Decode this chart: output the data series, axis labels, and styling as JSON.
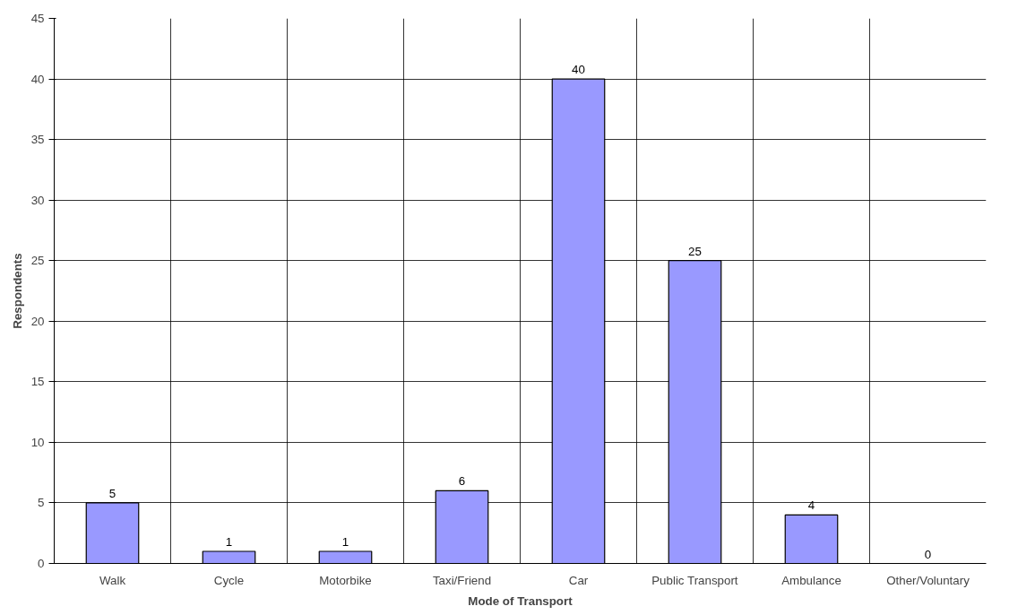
{
  "chart_data": {
    "type": "bar",
    "categories": [
      "Walk",
      "Cycle",
      "Motorbike",
      "Taxi/Friend",
      "Car",
      "Public Transport",
      "Ambulance",
      "Other/Voluntary"
    ],
    "values": [
      5,
      1,
      1,
      6,
      40,
      25,
      4,
      0
    ],
    "color": "#9999ff",
    "xlabel": "Mode of Transport",
    "ylabel": "Respondents",
    "ylim": [
      0,
      45
    ],
    "yticks": [
      0,
      5,
      10,
      15,
      20,
      25,
      30,
      35,
      40,
      45
    ],
    "grid": true,
    "data_labels": true
  }
}
